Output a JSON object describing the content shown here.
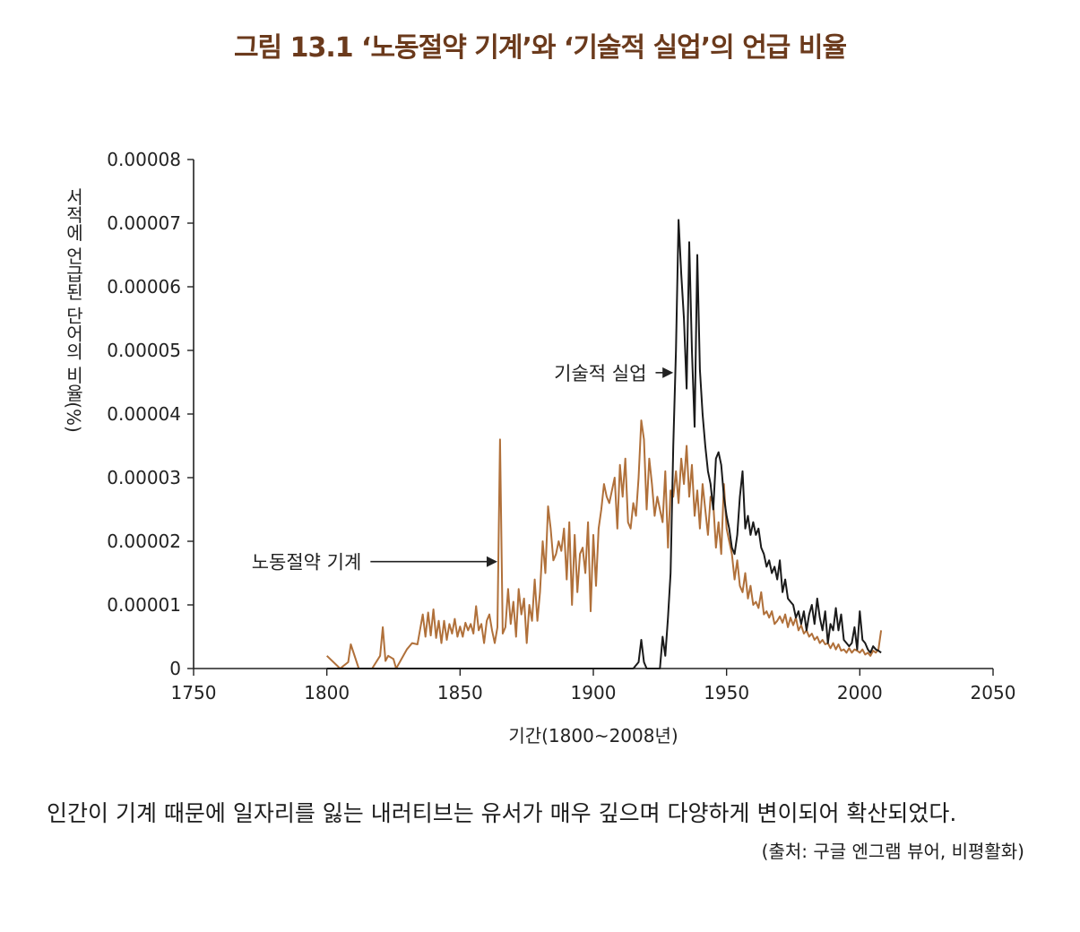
{
  "figure": {
    "title": "그림 13.1  ‘노동절약 기계’와 ‘기술적 실업’의 언급 비율"
  },
  "caption": {
    "text": "인간이 기계 때문에 일자리를 잃는 내러티브는 유서가 매우 깊으며 다양하게 변이되어 확산되었다.",
    "source": "(출처: 구글 엔그램 뷰어, 비평활화)"
  },
  "colors": {
    "series_labor": "#b0703a",
    "series_tech": "#1a1a1a",
    "title": "#6b3a1c"
  },
  "chart_data": {
    "type": "line",
    "title": "그림 13.1  ‘노동절약 기계’와 ‘기술적 실업’의 언급 비율",
    "xlabel": "기간(1800~2008년)",
    "ylabel": "서적에 언급된 단어의 비율(%)",
    "xlim": [
      1750,
      2050
    ],
    "ylim": [
      0,
      8e-05
    ],
    "x_ticks": [
      1750,
      1800,
      1850,
      1900,
      1950,
      2000,
      2050
    ],
    "x_tick_labels": [
      "1750",
      "1800",
      "1850",
      "1900",
      "1950",
      "2000",
      "2050"
    ],
    "y_ticks": [
      0,
      1e-05,
      2e-05,
      3e-05,
      4e-05,
      5e-05,
      6e-05,
      7e-05,
      8e-05
    ],
    "y_tick_labels": [
      "0",
      "0.00001",
      "0.00002",
      "0.00003",
      "0.00004",
      "0.00005",
      "0.00006",
      "0.00007",
      "0.00008"
    ],
    "grid": false,
    "series": [
      {
        "name": "노동절약 기계",
        "x": [
          1800,
          1805,
          1808,
          1809,
          1812,
          1817,
          1820,
          1821,
          1822,
          1823,
          1825,
          1826,
          1830,
          1832,
          1834,
          1836,
          1837,
          1838,
          1839,
          1840,
          1841,
          1842,
          1843,
          1844,
          1845,
          1846,
          1847,
          1848,
          1849,
          1850,
          1851,
          1852,
          1853,
          1854,
          1855,
          1856,
          1857,
          1858,
          1859,
          1860,
          1861,
          1862,
          1863,
          1864,
          1865,
          1866,
          1867,
          1868,
          1869,
          1870,
          1871,
          1872,
          1873,
          1874,
          1875,
          1876,
          1877,
          1878,
          1879,
          1880,
          1881,
          1882,
          1883,
          1884,
          1885,
          1886,
          1887,
          1888,
          1889,
          1890,
          1891,
          1892,
          1893,
          1894,
          1895,
          1896,
          1897,
          1898,
          1899,
          1900,
          1901,
          1902,
          1903,
          1904,
          1905,
          1906,
          1907,
          1908,
          1909,
          1910,
          1911,
          1912,
          1913,
          1914,
          1915,
          1916,
          1917,
          1918,
          1919,
          1920,
          1921,
          1922,
          1923,
          1924,
          1925,
          1926,
          1927,
          1928,
          1929,
          1930,
          1931,
          1932,
          1933,
          1934,
          1935,
          1936,
          1937,
          1938,
          1939,
          1940,
          1941,
          1942,
          1943,
          1944,
          1945,
          1946,
          1947,
          1948,
          1949,
          1950,
          1951,
          1952,
          1953,
          1954,
          1955,
          1956,
          1957,
          1958,
          1959,
          1960,
          1961,
          1962,
          1963,
          1964,
          1965,
          1966,
          1967,
          1968,
          1969,
          1970,
          1971,
          1972,
          1973,
          1974,
          1975,
          1976,
          1977,
          1978,
          1979,
          1980,
          1981,
          1982,
          1983,
          1984,
          1985,
          1986,
          1987,
          1988,
          1989,
          1990,
          1991,
          1992,
          1993,
          1994,
          1995,
          1996,
          1997,
          1998,
          1999,
          2000,
          2001,
          2002,
          2003,
          2004,
          2005,
          2006,
          2007,
          2008
        ],
        "values": [
          2e-06,
          0,
          1e-06,
          3.8e-06,
          0,
          0,
          2e-06,
          6.5e-06,
          1.2e-06,
          2e-06,
          1.5e-06,
          0,
          3e-06,
          4e-06,
          3.8e-06,
          8.5e-06,
          5e-06,
          8.8e-06,
          5.2e-06,
          9.3e-06,
          4.8e-06,
          7.5e-06,
          4e-06,
          7.5e-06,
          4.5e-06,
          7e-06,
          5.5e-06,
          7.8e-06,
          5e-06,
          6.6e-06,
          5e-06,
          7.2e-06,
          6e-06,
          7e-06,
          5.5e-06,
          9.8e-06,
          6e-06,
          7e-06,
          4e-06,
          7.5e-06,
          8.5e-06,
          6e-06,
          4e-06,
          6.5e-06,
          3.6e-05,
          5.5e-06,
          6.5e-06,
          1.25e-05,
          7e-06,
          1.05e-05,
          5e-06,
          1.25e-05,
          8.5e-06,
          1.1e-05,
          4e-06,
          1e-05,
          7.5e-06,
          1.4e-05,
          7.5e-06,
          1.2e-05,
          2e-05,
          1.5e-05,
          2.55e-05,
          2.2e-05,
          1.7e-05,
          1.8e-05,
          2e-05,
          1.85e-05,
          2.2e-05,
          1.4e-05,
          2.3e-05,
          1e-05,
          2.1e-05,
          1.2e-05,
          1.8e-05,
          1.9e-05,
          1.5e-05,
          2.3e-05,
          9e-06,
          2.1e-05,
          1.3e-05,
          2.2e-05,
          2.5e-05,
          2.9e-05,
          2.7e-05,
          2.6e-05,
          2.8e-05,
          3e-05,
          2.2e-05,
          3.2e-05,
          2.7e-05,
          3.3e-05,
          2.3e-05,
          2.2e-05,
          2.6e-05,
          2.4e-05,
          3e-05,
          3.9e-05,
          3.6e-05,
          2.5e-05,
          3.3e-05,
          2.9e-05,
          2.4e-05,
          2.7e-05,
          2.5e-05,
          2.3e-05,
          3.1e-05,
          1.9e-05,
          2.8e-05,
          2.7e-05,
          3.1e-05,
          2.6e-05,
          3.3e-05,
          2.9e-05,
          3.5e-05,
          2.7e-05,
          3.2e-05,
          2.4e-05,
          2.8e-05,
          2.2e-05,
          2.9e-05,
          2.5e-05,
          2.1e-05,
          2.7e-05,
          2.6e-05,
          1.9e-05,
          2.3e-05,
          1.8e-05,
          2.9e-05,
          2.2e-05,
          2e-05,
          1.8e-05,
          1.4e-05,
          1.7e-05,
          1.3e-05,
          1.2e-05,
          1.5e-05,
          1.1e-05,
          1.3e-05,
          1e-05,
          1.05e-05,
          9.5e-06,
          1.2e-05,
          8.5e-06,
          9e-06,
          8e-06,
          9e-06,
          7e-06,
          7.5e-06,
          8.2e-06,
          7.2e-06,
          8.5e-06,
          6.5e-06,
          8e-06,
          6.8e-06,
          8e-06,
          6e-06,
          6.8e-06,
          5.5e-06,
          6e-06,
          5e-06,
          5.5e-06,
          4.5e-06,
          5e-06,
          4e-06,
          4.5e-06,
          3.8e-06,
          4e-06,
          3.2e-06,
          4e-06,
          3e-06,
          3.8e-06,
          2.8e-06,
          3e-06,
          2.5e-06,
          3.2e-06,
          2.5e-06,
          3e-06,
          2.8e-06,
          2.5e-06,
          3e-06,
          2.2e-06,
          2.5e-06,
          2e-06,
          2.8e-06,
          2.5e-06,
          3e-06,
          6e-06
        ]
      },
      {
        "name": "기술적 실업",
        "x": [
          1800,
          1900,
          1915,
          1917,
          1918,
          1919,
          1920,
          1922,
          1925,
          1926,
          1927,
          1928,
          1929,
          1930,
          1931,
          1932,
          1933,
          1934,
          1935,
          1936,
          1937,
          1938,
          1939,
          1940,
          1941,
          1942,
          1943,
          1944,
          1945,
          1946,
          1947,
          1948,
          1949,
          1950,
          1951,
          1952,
          1953,
          1954,
          1955,
          1956,
          1957,
          1958,
          1959,
          1960,
          1961,
          1962,
          1963,
          1964,
          1965,
          1966,
          1967,
          1968,
          1969,
          1970,
          1971,
          1972,
          1973,
          1974,
          1975,
          1976,
          1977,
          1978,
          1979,
          1980,
          1981,
          1982,
          1983,
          1984,
          1985,
          1986,
          1987,
          1988,
          1989,
          1990,
          1991,
          1992,
          1993,
          1994,
          1995,
          1996,
          1997,
          1998,
          1999,
          2000,
          2001,
          2002,
          2003,
          2004,
          2005,
          2006,
          2007,
          2008
        ],
        "values": [
          0,
          0,
          0,
          1e-06,
          4.5e-06,
          1e-06,
          0,
          0,
          0,
          5e-06,
          2e-06,
          8e-06,
          1.5e-05,
          3.5e-05,
          5e-05,
          7.05e-05,
          6.2e-05,
          5.5e-05,
          4.4e-05,
          6.7e-05,
          5e-05,
          3.8e-05,
          6.5e-05,
          4.7e-05,
          4e-05,
          3.5e-05,
          3.1e-05,
          2.9e-05,
          2.5e-05,
          3.3e-05,
          3.4e-05,
          3.2e-05,
          2.7e-05,
          2.4e-05,
          2.2e-05,
          1.9e-05,
          1.8e-05,
          2.1e-05,
          2.7e-05,
          3.1e-05,
          2.2e-05,
          2.4e-05,
          2.1e-05,
          2.3e-05,
          2.1e-05,
          2.2e-05,
          1.9e-05,
          1.8e-05,
          1.6e-05,
          1.7e-05,
          1.5e-05,
          1.6e-05,
          1.4e-05,
          1.7e-05,
          1.2e-05,
          1.4e-05,
          1.1e-05,
          1.05e-05,
          1e-05,
          8e-06,
          9e-06,
          7e-06,
          9e-06,
          6e-06,
          8.5e-06,
          1e-05,
          7e-06,
          1.1e-05,
          8e-06,
          6e-06,
          9e-06,
          4e-06,
          7e-06,
          6e-06,
          9.5e-06,
          6e-06,
          8.5e-06,
          4.5e-06,
          4e-06,
          3.5e-06,
          4e-06,
          6.5e-06,
          3e-06,
          9e-06,
          4.5e-06,
          4e-06,
          3e-06,
          2.5e-06,
          3.5e-06,
          3e-06,
          2.8e-06,
          2.5e-06
        ]
      }
    ],
    "annotations": [
      {
        "text": "기술적 실업",
        "x": 1920,
        "y": 4.65e-05,
        "target_x": 1930,
        "target_y": 4.65e-05
      },
      {
        "text": "노동절약 기계",
        "x": 1813,
        "y": 1.68e-05,
        "target_x": 1864,
        "target_y": 1.68e-05
      }
    ]
  }
}
